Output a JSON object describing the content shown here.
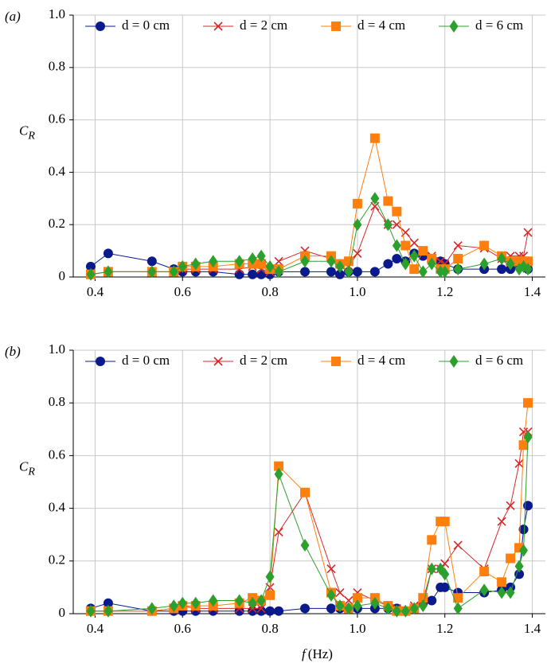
{
  "chart_data": [
    {
      "type": "line",
      "panel_label": "(a)",
      "ylabel": "C",
      "ylabel_sub": "R",
      "x": [
        0.39,
        0.43,
        0.53,
        0.58,
        0.6,
        0.63,
        0.67,
        0.73,
        0.76,
        0.78,
        0.8,
        0.82,
        0.88,
        0.94,
        0.96,
        0.98,
        1.0,
        1.04,
        1.07,
        1.09,
        1.11,
        1.13,
        1.15,
        1.17,
        1.19,
        1.2,
        1.23,
        1.29,
        1.33,
        1.35,
        1.37,
        1.38,
        1.39
      ],
      "xlim": [
        0.35,
        1.43
      ],
      "ylim": [
        0,
        1
      ],
      "xticks": [
        0.4,
        0.6,
        0.8,
        {
          "value": 1,
          "label": "1.0"
        },
        1.2,
        1.4
      ],
      "yticks": [
        0,
        0.2,
        0.4,
        0.6,
        0.8,
        {
          "value": 1,
          "label": "1.0"
        }
      ],
      "grid": true,
      "legend": "top",
      "series": [
        {
          "name": "d = 0 cm",
          "color": "#0a1a8c",
          "marker": "circle",
          "values": [
            0.04,
            0.09,
            0.06,
            0.03,
            0.02,
            0.02,
            0.02,
            0.01,
            0.01,
            0.01,
            0.01,
            0.02,
            0.02,
            0.02,
            0.01,
            0.02,
            0.02,
            0.02,
            0.05,
            0.07,
            0.06,
            0.09,
            0.08,
            0.06,
            0.06,
            0.05,
            0.03,
            0.03,
            0.03,
            0.03,
            0.04,
            0.04,
            0.03
          ]
        },
        {
          "name": "d = 2 cm",
          "color": "#d62728",
          "marker": "x",
          "values": [
            0.01,
            0.02,
            0.02,
            0.02,
            0.03,
            0.03,
            0.03,
            0.03,
            0.04,
            0.03,
            0.02,
            0.06,
            0.1,
            0.07,
            0.05,
            0.04,
            0.09,
            0.27,
            0.2,
            0.2,
            0.17,
            0.13,
            0.1,
            0.08,
            0.06,
            0.05,
            0.12,
            0.11,
            0.07,
            0.08,
            0.08,
            0.08,
            0.17
          ]
        },
        {
          "name": "d = 4 cm",
          "color": "#ff7f0e",
          "marker": "square",
          "values": [
            0.01,
            0.02,
            0.02,
            0.02,
            0.04,
            0.04,
            0.04,
            0.05,
            0.05,
            0.05,
            0.03,
            0.03,
            0.08,
            0.08,
            0.05,
            0.06,
            0.28,
            0.53,
            0.29,
            0.25,
            0.12,
            0.03,
            0.1,
            0.07,
            0.03,
            0.03,
            0.07,
            0.12,
            0.08,
            0.06,
            0.06,
            0.06,
            0.06
          ]
        },
        {
          "name": "d = 6 cm",
          "color": "#2ca02c",
          "marker": "diamond",
          "values": [
            0.01,
            0.02,
            0.02,
            0.02,
            0.04,
            0.05,
            0.06,
            0.06,
            0.07,
            0.08,
            0.04,
            0.02,
            0.06,
            0.06,
            0.04,
            0.02,
            0.2,
            0.3,
            0.2,
            0.12,
            0.05,
            0.08,
            0.02,
            0.05,
            0.02,
            0.02,
            0.03,
            0.05,
            0.07,
            0.05,
            0.03,
            0.04,
            0.03
          ]
        }
      ]
    },
    {
      "type": "line",
      "panel_label": "(b)",
      "ylabel": "C",
      "ylabel_sub": "R",
      "xlabel": "f",
      "xlabel_unit": "(Hz)",
      "x": [
        0.39,
        0.43,
        0.53,
        0.58,
        0.6,
        0.63,
        0.67,
        0.73,
        0.76,
        0.78,
        0.8,
        0.82,
        0.88,
        0.94,
        0.96,
        0.98,
        1.0,
        1.04,
        1.07,
        1.09,
        1.11,
        1.13,
        1.15,
        1.17,
        1.19,
        1.2,
        1.23,
        1.29,
        1.33,
        1.35,
        1.37,
        1.38,
        1.39
      ],
      "xlim": [
        0.35,
        1.43
      ],
      "ylim": [
        0,
        1
      ],
      "xticks": [
        0.4,
        0.6,
        0.8,
        {
          "value": 1,
          "label": "1.0"
        },
        1.2,
        1.4
      ],
      "yticks": [
        0,
        0.2,
        0.4,
        0.6,
        0.8,
        {
          "value": 1,
          "label": "1.0"
        }
      ],
      "grid": true,
      "legend": "top",
      "series": [
        {
          "name": "d = 0 cm",
          "color": "#0a1a8c",
          "marker": "circle",
          "values": [
            0.02,
            0.04,
            0.01,
            0.01,
            0.01,
            0.01,
            0.01,
            0.01,
            0.01,
            0.01,
            0.01,
            0.01,
            0.02,
            0.02,
            0.02,
            0.02,
            0.02,
            0.02,
            0.02,
            0.02,
            0.01,
            0.02,
            0.04,
            0.05,
            0.1,
            0.1,
            0.08,
            0.08,
            0.09,
            0.1,
            0.15,
            0.32,
            0.41
          ]
        },
        {
          "name": "d = 2 cm",
          "color": "#d62728",
          "marker": "x",
          "values": [
            0.01,
            0.01,
            0.01,
            0.02,
            0.03,
            0.02,
            0.02,
            0.02,
            0.02,
            0.02,
            0.1,
            0.31,
            0.46,
            0.17,
            0.08,
            0.05,
            0.08,
            0.05,
            0.03,
            0.02,
            0.01,
            0.03,
            0.05,
            0.17,
            0.17,
            0.19,
            0.26,
            0.17,
            0.35,
            0.41,
            0.57,
            0.69,
            0.69
          ]
        },
        {
          "name": "d = 4 cm",
          "color": "#ff7f0e",
          "marker": "square",
          "values": [
            0.01,
            0.01,
            0.01,
            0.02,
            0.03,
            0.03,
            0.03,
            0.04,
            0.06,
            0.05,
            0.07,
            0.56,
            0.46,
            0.08,
            0.03,
            0.02,
            0.06,
            0.06,
            0.03,
            0.01,
            0.01,
            0.02,
            0.06,
            0.28,
            0.35,
            0.35,
            0.06,
            0.16,
            0.12,
            0.21,
            0.25,
            0.64,
            0.8
          ]
        },
        {
          "name": "d = 6 cm",
          "color": "#2ca02c",
          "marker": "diamond",
          "values": [
            0.01,
            0.01,
            0.02,
            0.03,
            0.04,
            0.04,
            0.05,
            0.05,
            0.04,
            0.05,
            0.14,
            0.53,
            0.26,
            0.07,
            0.03,
            0.02,
            0.03,
            0.04,
            0.02,
            0.01,
            0.01,
            0.02,
            0.03,
            0.17,
            0.17,
            0.15,
            0.02,
            0.09,
            0.08,
            0.08,
            0.18,
            0.24,
            0.67
          ]
        }
      ]
    }
  ]
}
